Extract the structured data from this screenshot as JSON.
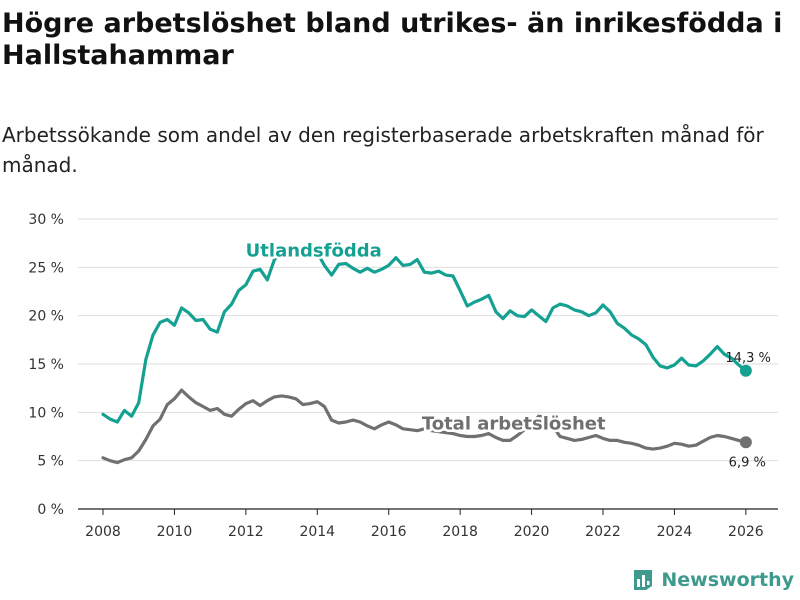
{
  "title": "Högre arbetslöshet bland utrikes- än inrikesfödda i Hallstahammar",
  "subtitle": "Arbetssökande som andel av den registerbaserade arbetskraften månad för månad.",
  "brand": {
    "name": "Newsworthy",
    "icon": "bar-chart-icon",
    "color": "#3e9a8d"
  },
  "chart_data": {
    "type": "line",
    "title": "Högre arbetslöshet bland utrikes- än inrikesfödda i Hallstahammar",
    "xlabel": "",
    "ylabel": "",
    "xlim": [
      2007.3,
      2026.9
    ],
    "ylim": [
      0,
      30
    ],
    "y_ticks": [
      0,
      5,
      10,
      15,
      20,
      25,
      30
    ],
    "y_tick_labels": [
      "0 %",
      "5 %",
      "10 %",
      "15 %",
      "20 %",
      "25 %",
      "30 %"
    ],
    "x_ticks": [
      2008,
      2010,
      2012,
      2014,
      2016,
      2018,
      2020,
      2022,
      2024,
      2026
    ],
    "x_tick_labels": [
      "2008",
      "2010",
      "2012",
      "2014",
      "2016",
      "2018",
      "2020",
      "2022",
      "2024",
      "2026"
    ],
    "grid": true,
    "series": [
      {
        "name": "Utlandsfödda",
        "label": "Utlandsfödda",
        "color": "#14a192",
        "end_label": "14,3 %",
        "x": [
          2008.0,
          2008.2,
          2008.4,
          2008.6,
          2008.8,
          2009.0,
          2009.2,
          2009.4,
          2009.6,
          2009.8,
          2010.0,
          2010.2,
          2010.4,
          2010.6,
          2010.8,
          2011.0,
          2011.2,
          2011.4,
          2011.6,
          2011.8,
          2012.0,
          2012.2,
          2012.4,
          2012.6,
          2012.8,
          2013.0,
          2013.2,
          2013.4,
          2013.6,
          2013.8,
          2014.0,
          2014.2,
          2014.4,
          2014.6,
          2014.8,
          2015.0,
          2015.2,
          2015.4,
          2015.6,
          2015.8,
          2016.0,
          2016.2,
          2016.4,
          2016.6,
          2016.8,
          2017.0,
          2017.2,
          2017.4,
          2017.6,
          2017.8,
          2018.0,
          2018.2,
          2018.4,
          2018.6,
          2018.8,
          2019.0,
          2019.2,
          2019.4,
          2019.6,
          2019.8,
          2020.0,
          2020.2,
          2020.4,
          2020.6,
          2020.8,
          2021.0,
          2021.2,
          2021.4,
          2021.6,
          2021.8,
          2022.0,
          2022.2,
          2022.4,
          2022.6,
          2022.8,
          2023.0,
          2023.2,
          2023.4,
          2023.6,
          2023.8,
          2024.0,
          2024.2,
          2024.4,
          2024.6,
          2024.8,
          2025.0,
          2025.2,
          2025.4,
          2025.6,
          2025.8,
          2026.0
        ],
        "values": [
          9.8,
          9.3,
          9.0,
          10.2,
          9.6,
          11.0,
          15.5,
          18.0,
          19.3,
          19.6,
          19.0,
          20.8,
          20.3,
          19.5,
          19.6,
          18.6,
          18.3,
          20.4,
          21.2,
          22.6,
          23.2,
          24.6,
          24.8,
          23.7,
          25.8,
          26.5,
          26.8,
          26.2,
          26.5,
          26.6,
          26.5,
          25.2,
          24.2,
          25.3,
          25.4,
          24.9,
          24.5,
          24.9,
          24.5,
          24.8,
          25.2,
          26.0,
          25.2,
          25.3,
          25.8,
          24.5,
          24.4,
          24.6,
          24.2,
          24.1,
          22.6,
          21.0,
          21.4,
          21.7,
          22.1,
          20.4,
          19.7,
          20.5,
          20.0,
          19.9,
          20.6,
          20.0,
          19.4,
          20.8,
          21.2,
          21.0,
          20.6,
          20.4,
          20.0,
          20.3,
          21.1,
          20.4,
          19.2,
          18.7,
          18.0,
          17.6,
          17.0,
          15.7,
          14.8,
          14.6,
          14.9,
          15.6,
          14.9,
          14.8,
          15.3,
          16.0,
          16.8,
          16.0,
          15.6,
          14.9,
          14.3
        ]
      },
      {
        "name": "Total arbetslöshet",
        "label": "Total arbetslöshet",
        "color": "#707070",
        "end_label": "6,9 %",
        "x": [
          2008.0,
          2008.2,
          2008.4,
          2008.6,
          2008.8,
          2009.0,
          2009.2,
          2009.4,
          2009.6,
          2009.8,
          2010.0,
          2010.2,
          2010.4,
          2010.6,
          2010.8,
          2011.0,
          2011.2,
          2011.4,
          2011.6,
          2011.8,
          2012.0,
          2012.2,
          2012.4,
          2012.6,
          2012.8,
          2013.0,
          2013.2,
          2013.4,
          2013.6,
          2013.8,
          2014.0,
          2014.2,
          2014.4,
          2014.6,
          2014.8,
          2015.0,
          2015.2,
          2015.4,
          2015.6,
          2015.8,
          2016.0,
          2016.2,
          2016.4,
          2016.6,
          2016.8,
          2017.0,
          2017.2,
          2017.4,
          2017.6,
          2017.8,
          2018.0,
          2018.2,
          2018.4,
          2018.6,
          2018.8,
          2019.0,
          2019.2,
          2019.4,
          2019.6,
          2019.8,
          2020.0,
          2020.2,
          2020.4,
          2020.6,
          2020.8,
          2021.0,
          2021.2,
          2021.4,
          2021.6,
          2021.8,
          2022.0,
          2022.2,
          2022.4,
          2022.6,
          2022.8,
          2023.0,
          2023.2,
          2023.4,
          2023.6,
          2023.8,
          2024.0,
          2024.2,
          2024.4,
          2024.6,
          2024.8,
          2025.0,
          2025.2,
          2025.4,
          2025.6,
          2025.8,
          2026.0
        ],
        "values": [
          5.3,
          5.0,
          4.8,
          5.1,
          5.3,
          6.0,
          7.2,
          8.6,
          9.3,
          10.8,
          11.4,
          12.3,
          11.6,
          11.0,
          10.6,
          10.2,
          10.4,
          9.8,
          9.6,
          10.3,
          10.9,
          11.2,
          10.7,
          11.2,
          11.6,
          11.7,
          11.6,
          11.4,
          10.8,
          10.9,
          11.1,
          10.6,
          9.2,
          8.9,
          9.0,
          9.2,
          9.0,
          8.6,
          8.3,
          8.7,
          9.0,
          8.7,
          8.3,
          8.2,
          8.1,
          8.3,
          8.1,
          8.0,
          7.9,
          7.8,
          7.6,
          7.5,
          7.5,
          7.6,
          7.8,
          7.4,
          7.1,
          7.1,
          7.6,
          8.2,
          8.8,
          9.6,
          9.5,
          8.5,
          7.5,
          7.3,
          7.1,
          7.2,
          7.4,
          7.6,
          7.3,
          7.1,
          7.1,
          6.9,
          6.8,
          6.6,
          6.3,
          6.2,
          6.3,
          6.5,
          6.8,
          6.7,
          6.5,
          6.6,
          7.0,
          7.4,
          7.6,
          7.5,
          7.3,
          7.1,
          6.9
        ]
      }
    ]
  }
}
